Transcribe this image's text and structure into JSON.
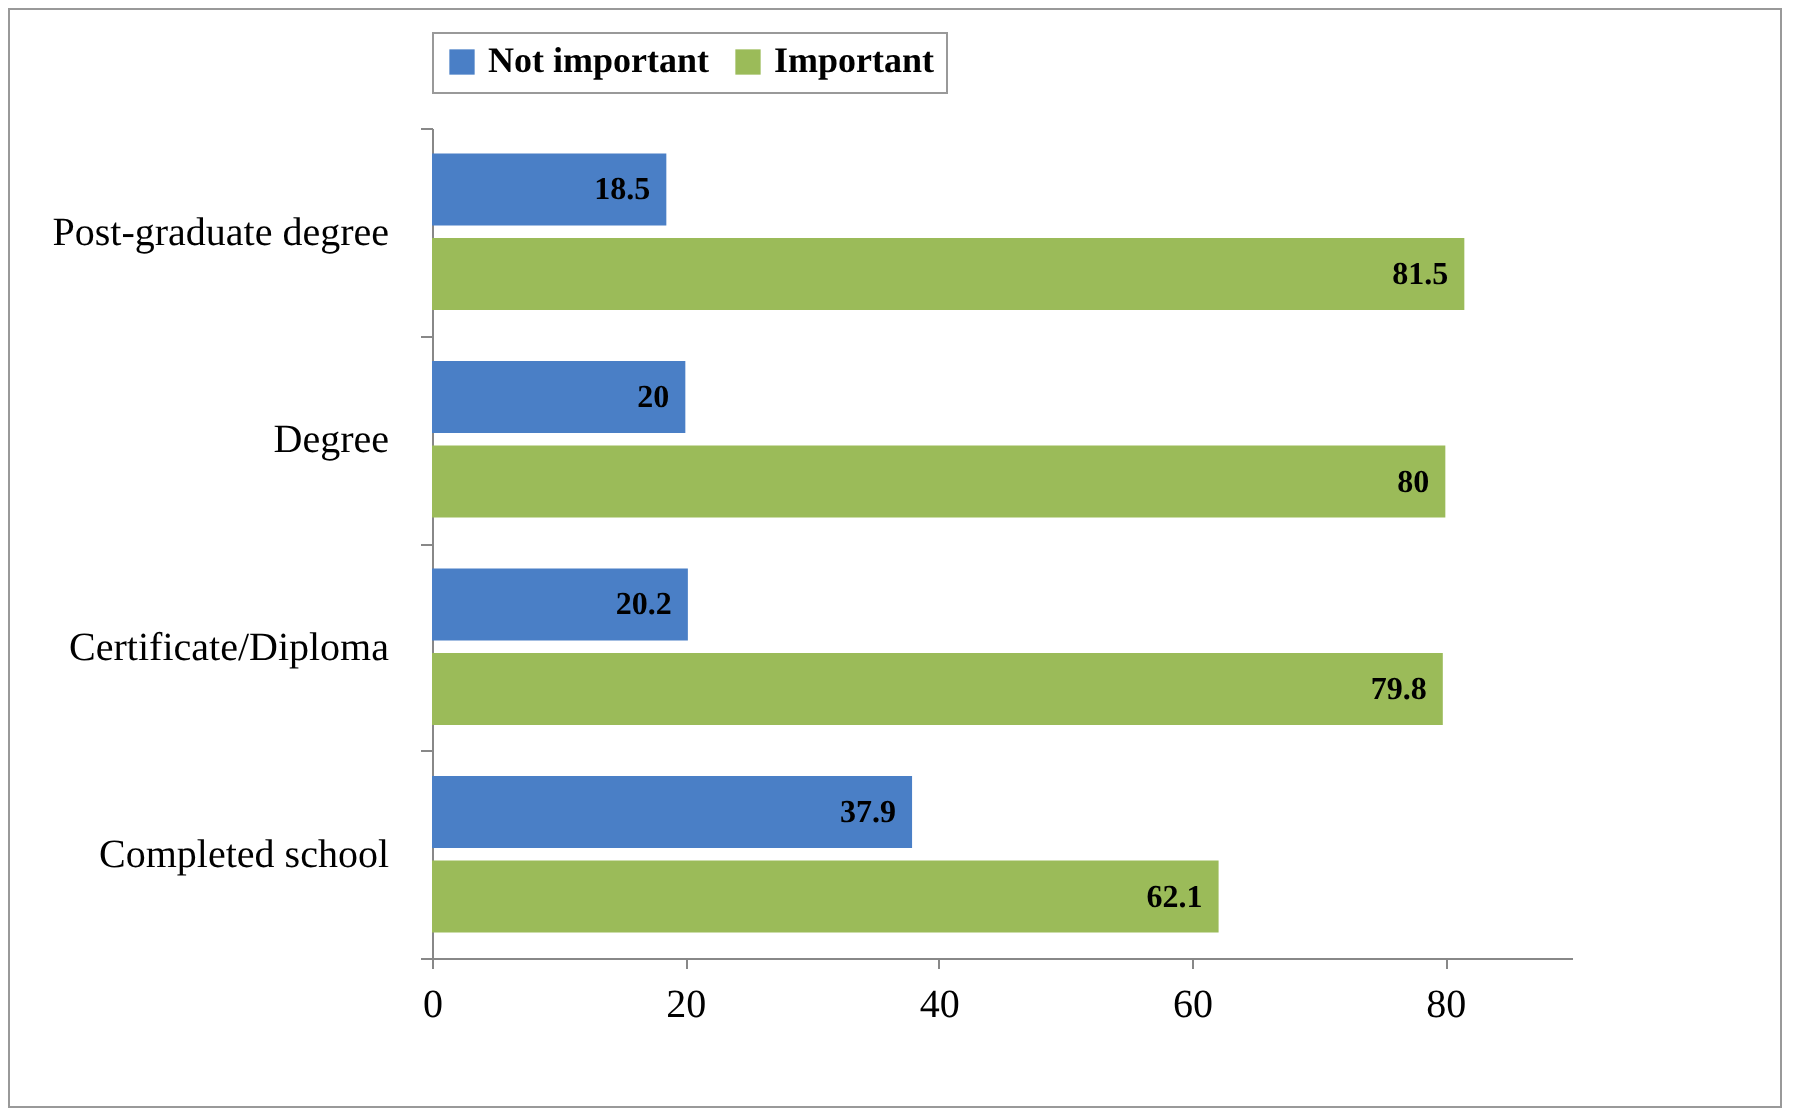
{
  "chart_data": {
    "type": "bar",
    "orientation": "horizontal",
    "categories": [
      "Post-graduate degree",
      "Degree",
      "Certificate/Diploma",
      "Completed school"
    ],
    "series": [
      {
        "name": "Not important",
        "color": "#4a7fc6",
        "values": [
          18.5,
          20,
          20.2,
          37.9
        ]
      },
      {
        "name": "Important",
        "color": "#9bbb59",
        "values": [
          81.5,
          80,
          79.8,
          62.1
        ]
      }
    ],
    "xlim": [
      0,
      90
    ],
    "xticks": [
      0,
      20,
      40,
      60,
      80
    ],
    "data_labels": true,
    "legend": "top",
    "grid": false
  }
}
